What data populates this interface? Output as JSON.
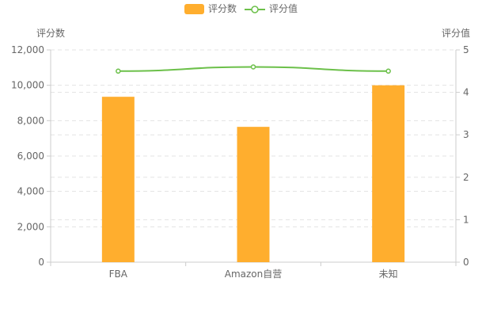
{
  "colors": {
    "bar": "#FFAE2E",
    "line": "#6CC04A",
    "axis": "#CCCCCC",
    "grid": "#E3E3E3",
    "text": "#666666"
  },
  "chart_data": {
    "type": "bar",
    "categories": [
      "FBA",
      "Amazon自营",
      "未知"
    ],
    "series": [
      {
        "name": "评分数",
        "type": "bar",
        "axis": "left",
        "values": [
          9350,
          7650,
          10000
        ]
      },
      {
        "name": "评分值",
        "type": "line",
        "axis": "right",
        "values": [
          4.5,
          4.6,
          4.5
        ]
      }
    ],
    "left_axis": {
      "label": "评分数",
      "min": 0,
      "max": 12000,
      "ticks": [
        "0",
        "2,000",
        "4,000",
        "6,000",
        "8,000",
        "10,000",
        "12,000"
      ]
    },
    "right_axis": {
      "label": "评分值",
      "min": 0,
      "max": 5,
      "ticks": [
        "0",
        "1",
        "2",
        "3",
        "4",
        "5"
      ]
    },
    "legend": {
      "position": "top-center",
      "items": [
        "评分数",
        "评分值"
      ]
    },
    "grid": true
  }
}
